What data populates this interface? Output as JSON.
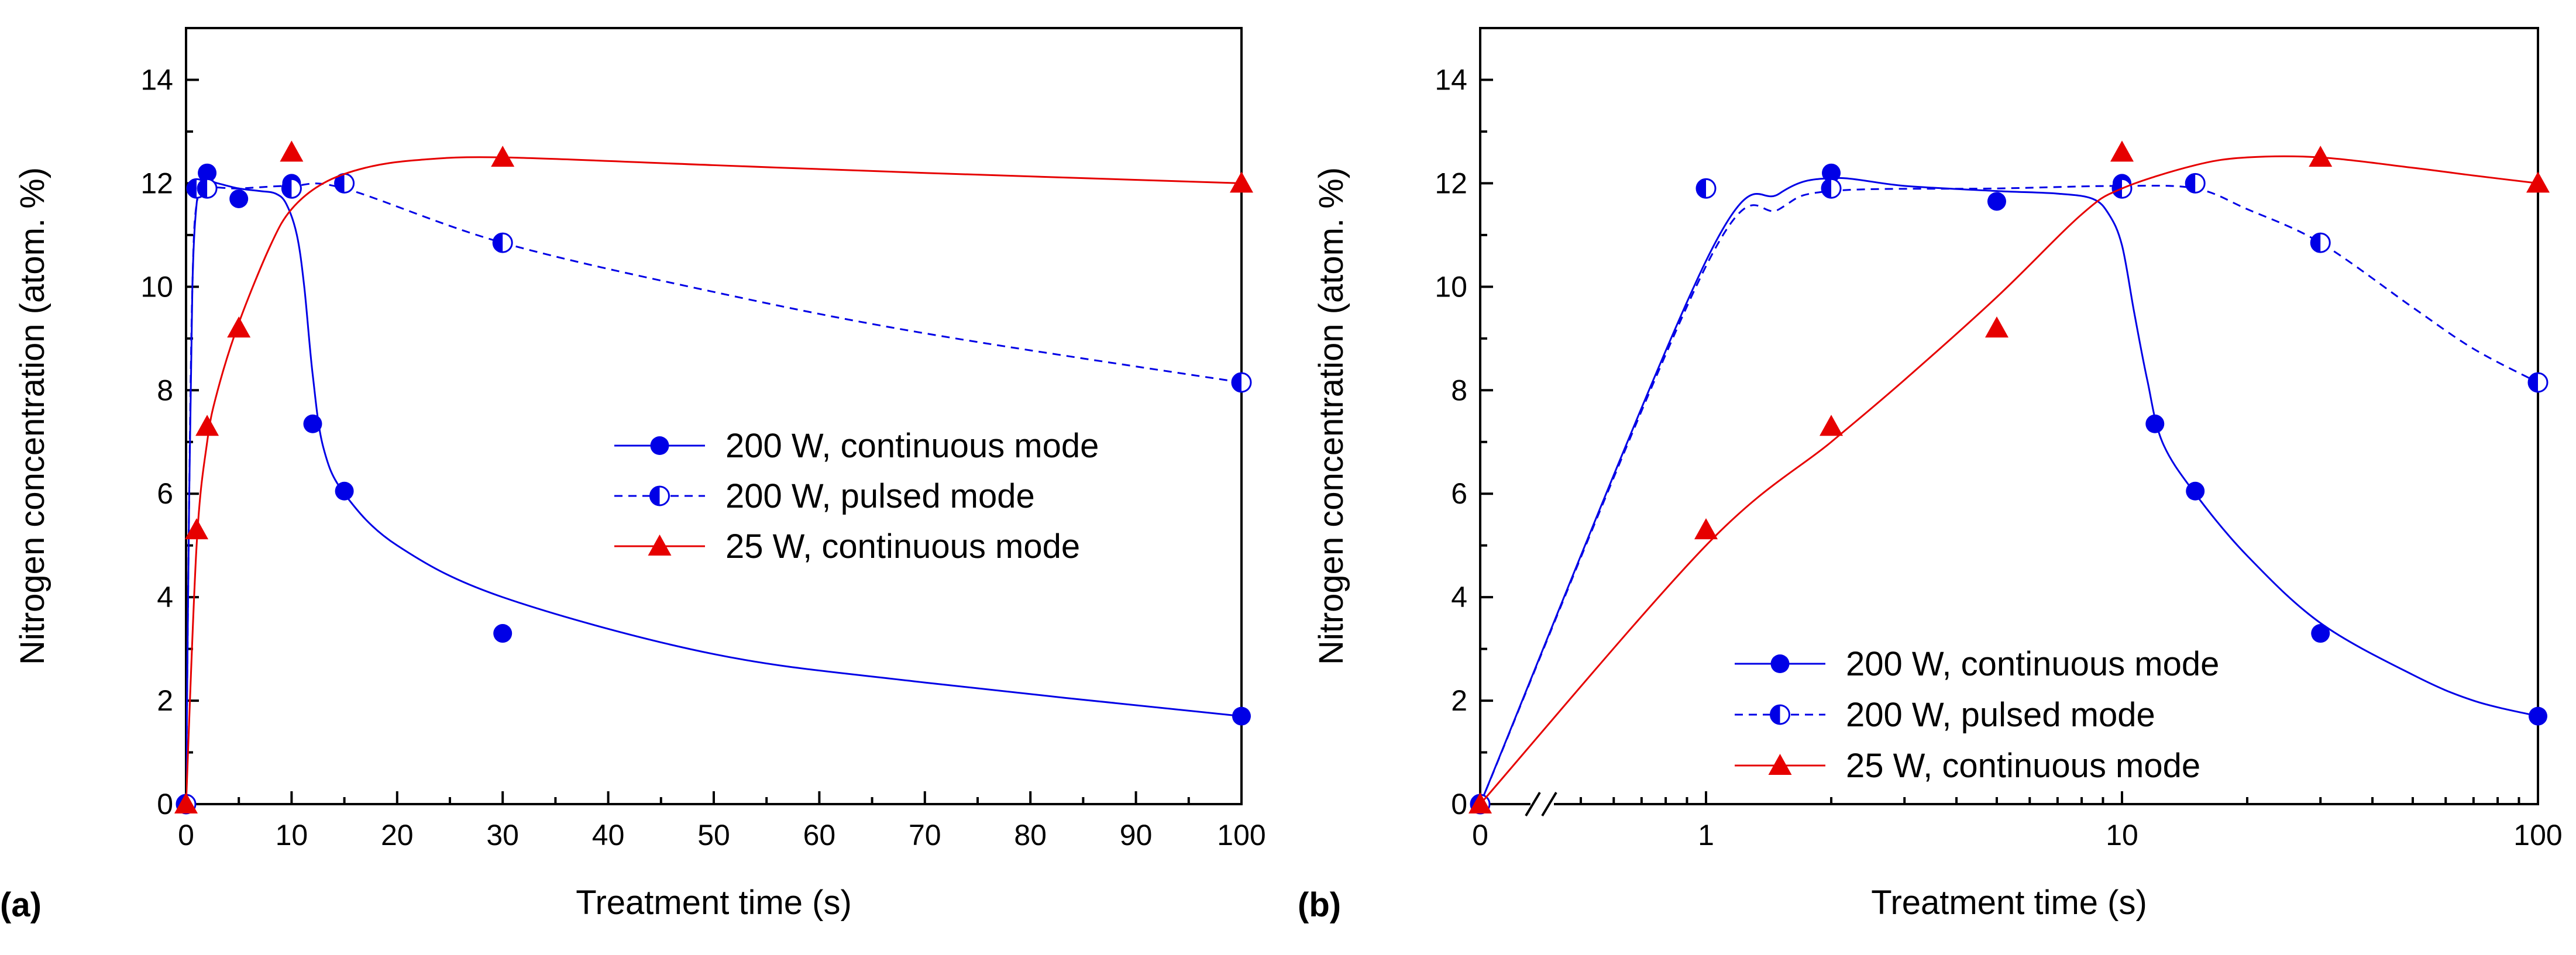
{
  "chart_data": [
    {
      "type": "scatter",
      "panel_label": "(a)",
      "xscale": "linear",
      "xlim": [
        0,
        100
      ],
      "ylim": [
        0,
        15
      ],
      "xticks": [
        0,
        10,
        20,
        30,
        40,
        50,
        60,
        70,
        80,
        90,
        100
      ],
      "xtick_labels": [
        "0",
        "10",
        "20",
        "30",
        "40",
        "50",
        "60",
        "70",
        "80",
        "90",
        "100"
      ],
      "yticks": [
        0,
        2,
        4,
        6,
        8,
        10,
        12,
        14
      ],
      "ytick_labels": [
        "0",
        "2",
        "4",
        "6",
        "8",
        "10",
        "12",
        "14"
      ],
      "xlabel": "Treatment time (s)",
      "ylabel": "Nitrogen concentration (atom. %)",
      "legend_position": "center-right",
      "series": [
        {
          "name": "200 W, continuous mode",
          "color": "#0000e6",
          "marker": "circle",
          "line": "solid",
          "x": [
            0,
            1,
            2,
            5,
            10,
            12,
            15,
            30,
            100
          ],
          "y": [
            0,
            11.9,
            12.2,
            11.7,
            12.0,
            7.35,
            6.05,
            3.3,
            1.7
          ],
          "fit": [
            [
              0,
              0
            ],
            [
              0.3,
              6
            ],
            [
              0.6,
              10
            ],
            [
              1,
              11.6
            ],
            [
              1.5,
              11.9
            ],
            [
              2,
              12.05
            ],
            [
              3,
              12.0
            ],
            [
              5,
              11.9
            ],
            [
              7,
              11.85
            ],
            [
              8.5,
              11.8
            ],
            [
              9.5,
              11.6
            ],
            [
              10.5,
              11.0
            ],
            [
              11.2,
              10.0
            ],
            [
              12,
              8.3
            ],
            [
              13,
              6.9
            ],
            [
              15,
              6.0
            ],
            [
              20,
              5.0
            ],
            [
              30,
              4.0
            ],
            [
              50,
              2.9
            ],
            [
              70,
              2.35
            ],
            [
              100,
              1.7
            ]
          ]
        },
        {
          "name": "200 W, pulsed mode",
          "color": "#0000e6",
          "marker": "half-circle",
          "line": "dashed",
          "x": [
            0,
            1,
            2,
            10,
            15,
            30,
            100
          ],
          "y": [
            0,
            11.9,
            11.9,
            11.9,
            12.0,
            10.85,
            8.15
          ],
          "fit": [
            [
              0,
              0
            ],
            [
              0.3,
              6
            ],
            [
              0.6,
              10
            ],
            [
              1,
              11.6
            ],
            [
              2,
              11.9
            ],
            [
              5,
              11.9
            ],
            [
              10,
              11.95
            ],
            [
              15,
              11.9
            ],
            [
              30,
              10.85
            ],
            [
              50,
              9.9
            ],
            [
              70,
              9.1
            ],
            [
              100,
              8.15
            ]
          ]
        },
        {
          "name": "25 W, continuous mode",
          "color": "#e60000",
          "marker": "triangle",
          "line": "solid",
          "x": [
            0,
            1,
            2,
            5,
            10,
            30,
            100
          ],
          "y": [
            0,
            5.3,
            7.3,
            9.2,
            12.6,
            12.5,
            12.0
          ],
          "fit": [
            [
              0,
              0
            ],
            [
              1,
              5.0
            ],
            [
              2,
              7.0
            ],
            [
              3,
              8.0
            ],
            [
              5,
              9.3
            ],
            [
              8,
              10.8
            ],
            [
              10,
              11.5
            ],
            [
              13,
              12.0
            ],
            [
              17,
              12.3
            ],
            [
              22,
              12.45
            ],
            [
              30,
              12.5
            ],
            [
              50,
              12.35
            ],
            [
              70,
              12.2
            ],
            [
              100,
              12.0
            ]
          ]
        }
      ]
    },
    {
      "type": "scatter",
      "panel_label": "(b)",
      "xscale": "log (with 0 at origin, axis break)",
      "xlim": [
        0,
        100
      ],
      "ylim": [
        0,
        15
      ],
      "xticks": [
        0,
        1,
        10,
        100
      ],
      "xtick_labels": [
        "0",
        "1",
        "10",
        "100"
      ],
      "yticks": [
        0,
        2,
        4,
        6,
        8,
        10,
        12,
        14
      ],
      "ytick_labels": [
        "0",
        "2",
        "4",
        "6",
        "8",
        "10",
        "12",
        "14"
      ],
      "xlabel": "Treatment time (s)",
      "ylabel": "Nitrogen concentration (atom. %)",
      "legend_position": "bottom-center",
      "series": [
        {
          "name": "200 W, continuous mode",
          "color": "#0000e6",
          "marker": "circle",
          "line": "solid",
          "x": [
            0,
            2,
            5,
            10,
            12,
            15,
            30,
            100
          ],
          "y": [
            0,
            12.2,
            11.65,
            12.0,
            7.35,
            6.05,
            3.3,
            1.7
          ],
          "fit": [
            [
              0,
              0
            ],
            [
              1,
              10.5
            ],
            [
              1.5,
              11.8
            ],
            [
              2,
              12.1
            ],
            [
              3,
              11.95
            ],
            [
              5,
              11.85
            ],
            [
              7,
              11.8
            ],
            [
              8.5,
              11.7
            ],
            [
              9.3,
              11.4
            ],
            [
              10,
              10.8
            ],
            [
              10.7,
              9.5
            ],
            [
              11.5,
              8.2
            ],
            [
              12.5,
              7.0
            ],
            [
              15,
              6.0
            ],
            [
              20,
              4.8
            ],
            [
              30,
              3.5
            ],
            [
              50,
              2.5
            ],
            [
              70,
              2.0
            ],
            [
              100,
              1.7
            ]
          ]
        },
        {
          "name": "200 W, pulsed mode",
          "color": "#0000e6",
          "marker": "half-circle",
          "line": "dashed",
          "x": [
            0,
            1,
            2,
            10,
            15,
            30,
            100
          ],
          "y": [
            0,
            11.9,
            11.9,
            11.9,
            12.0,
            10.85,
            8.15
          ],
          "fit": [
            [
              0,
              0
            ],
            [
              1,
              10.4
            ],
            [
              1.5,
              11.5
            ],
            [
              2,
              11.85
            ],
            [
              5,
              11.9
            ],
            [
              10,
              11.95
            ],
            [
              15,
              11.9
            ],
            [
              20,
              11.5
            ],
            [
              30,
              10.85
            ],
            [
              50,
              9.6
            ],
            [
              70,
              8.8
            ],
            [
              100,
              8.15
            ]
          ]
        },
        {
          "name": "25 W, continuous mode",
          "color": "#e60000",
          "marker": "triangle",
          "line": "solid",
          "x": [
            0,
            1,
            2,
            5,
            10,
            30,
            100
          ],
          "y": [
            0,
            5.3,
            7.3,
            9.2,
            12.6,
            12.5,
            12.0
          ],
          "fit": [
            [
              0,
              0
            ],
            [
              1,
              5.0
            ],
            [
              2,
              7.0
            ],
            [
              3,
              8.2
            ],
            [
              5,
              9.8
            ],
            [
              8,
              11.4
            ],
            [
              10,
              11.9
            ],
            [
              15,
              12.35
            ],
            [
              20,
              12.5
            ],
            [
              30,
              12.5
            ],
            [
              50,
              12.3
            ],
            [
              70,
              12.15
            ],
            [
              100,
              12.0
            ]
          ]
        }
      ]
    }
  ]
}
